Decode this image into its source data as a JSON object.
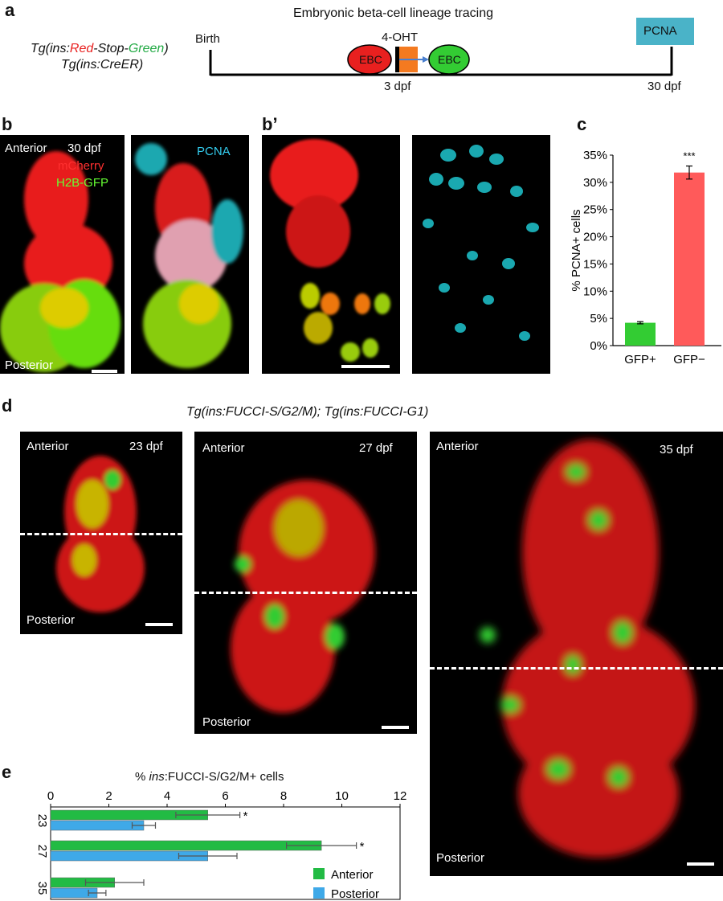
{
  "panel_a": {
    "letter": "a",
    "title": "Embryonic beta-cell lineage tracing",
    "transgene_line1": {
      "prefix": "Tg(ins:",
      "red": "Red",
      "mid": "-Stop-",
      "green": "Green",
      "suffix": ")"
    },
    "transgene_line2": "Tg(ins:CreER)",
    "birth_label": "Birth",
    "treatment_label": "4-OHT",
    "ebc_red_label": "EBC",
    "ebc_green_label": "EBC",
    "time_3": "3 dpf",
    "time_30": "30 dpf",
    "pcna_box_label": "PCNA",
    "colors": {
      "red_cell": "#e8201f",
      "green_cell": "#33cc33",
      "treatment": "#f47a20",
      "pcna_box": "#4ab3c8",
      "arrow": "#4a7fcf"
    }
  },
  "panel_b": {
    "letter": "b",
    "anterior": "Anterior",
    "stage": "30 dpf",
    "mcherry": "mCherry",
    "h2bgfp": "H2B-GFP",
    "posterior": "Posterior",
    "pcna": "PCNA"
  },
  "panel_b_prime": {
    "letter": "b’"
  },
  "panel_c": {
    "letter": "c",
    "chart_data": {
      "type": "bar",
      "categories": [
        "GFP+",
        "GFP−"
      ],
      "values": [
        4.2,
        31.8
      ],
      "errors": [
        0.2,
        1.2
      ],
      "colors": [
        "#33cc33",
        "#ff5a5a"
      ],
      "ylabel": "% PCNA+ cells",
      "ylim": [
        0,
        35
      ],
      "yticks": [
        "0%",
        "5%",
        "10%",
        "15%",
        "20%",
        "25%",
        "30%",
        "35%"
      ],
      "significance": "***"
    }
  },
  "panel_d": {
    "letter": "d",
    "title": "Tg(ins:FUCCI-S/G2/M); Tg(ins:FUCCI-G1)",
    "anterior": "Anterior",
    "posterior": "Posterior",
    "stage_23": "23 dpf",
    "stage_27": "27 dpf",
    "stage_35": "35 dpf"
  },
  "panel_e": {
    "letter": "e",
    "chart_data": {
      "type": "bar",
      "orientation": "horizontal",
      "xlabel_italic": "ins",
      "xlabel_prefix": "% ",
      "xlabel_suffix": ":FUCCI-S/G2/M+ cells",
      "xlim": [
        0,
        12
      ],
      "xticks": [
        "0",
        "2",
        "4",
        "6",
        "8",
        "10",
        "12"
      ],
      "categories": [
        "23",
        "27",
        "35"
      ],
      "series": [
        {
          "name": "Anterior",
          "color": "#22bb44",
          "values": [
            5.4,
            9.3,
            2.2
          ],
          "errors": [
            1.1,
            1.2,
            1.0
          ]
        },
        {
          "name": "Posterior",
          "color": "#3fa9e8",
          "values": [
            3.2,
            5.4,
            1.6
          ],
          "errors": [
            0.4,
            1.0,
            0.3
          ]
        }
      ],
      "significance": [
        "*",
        "*",
        ""
      ]
    }
  }
}
